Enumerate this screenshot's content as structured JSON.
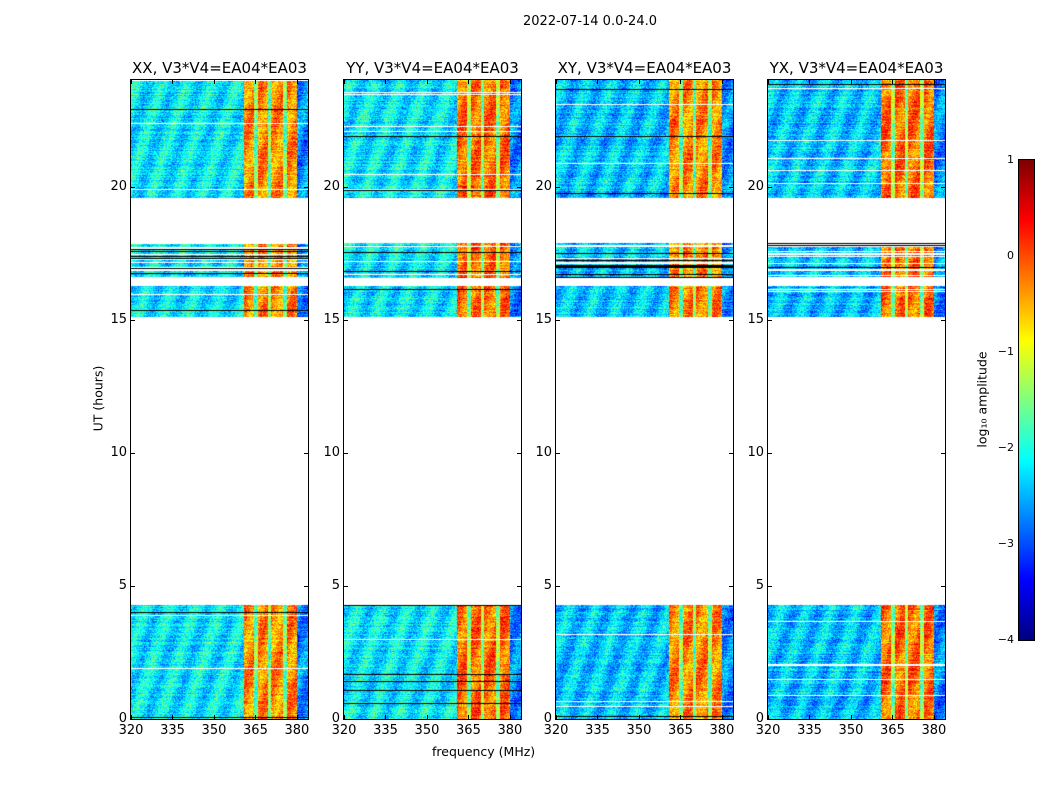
{
  "chart_data": {
    "type": "heatmap",
    "title": "2022-07-14 0.0-24.0",
    "xlabel": "frequency (MHz)",
    "ylabel": "UT (hours)",
    "xlim": [
      320,
      384
    ],
    "ylim": [
      0,
      24
    ],
    "xticks": [
      "320",
      "335",
      "350",
      "365",
      "380"
    ],
    "yticks": [
      "0",
      "5",
      "10",
      "15",
      "20"
    ],
    "panels": [
      {
        "title": "XX, V3*V4=EA04*EA03"
      },
      {
        "title": "YY, V3*V4=EA04*EA03"
      },
      {
        "title": "XY, V3*V4=EA04*EA03"
      },
      {
        "title": "YX, V3*V4=EA04*EA03"
      }
    ],
    "data_time_ranges_hours": [
      [
        0,
        4.3
      ],
      [
        15.1,
        16.3
      ],
      [
        16.6,
        17.9
      ],
      [
        19.6,
        24
      ]
    ],
    "bands": [
      {
        "freq_range_mhz": [
          320,
          360.5
        ],
        "log10_amplitude_approx": -2.2
      },
      {
        "freq_range_mhz": [
          360.5,
          380
        ],
        "log10_amplitude_approx": -0.3
      },
      {
        "freq_range_mhz": [
          380,
          384
        ],
        "log10_amplitude_approx": -2.7
      }
    ],
    "colorbar": {
      "label": "log₁₀ amplitude",
      "colormap": "jet",
      "range": [
        -4,
        1
      ],
      "ticks": [
        "1",
        "0",
        "−1",
        "−2",
        "−3",
        "−4"
      ]
    }
  }
}
